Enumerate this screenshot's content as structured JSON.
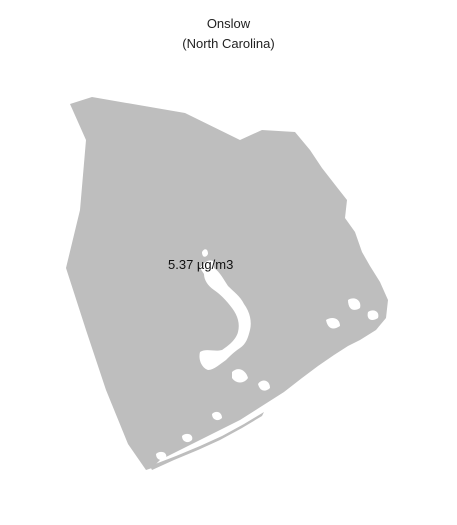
{
  "map": {
    "title_line1": "Onslow",
    "title_line2": "(North Carolina)",
    "value_label": "5.37 µg/m3",
    "fill_color": "#bebebe",
    "water_color": "#ffffff",
    "background_color": "#ffffff"
  }
}
